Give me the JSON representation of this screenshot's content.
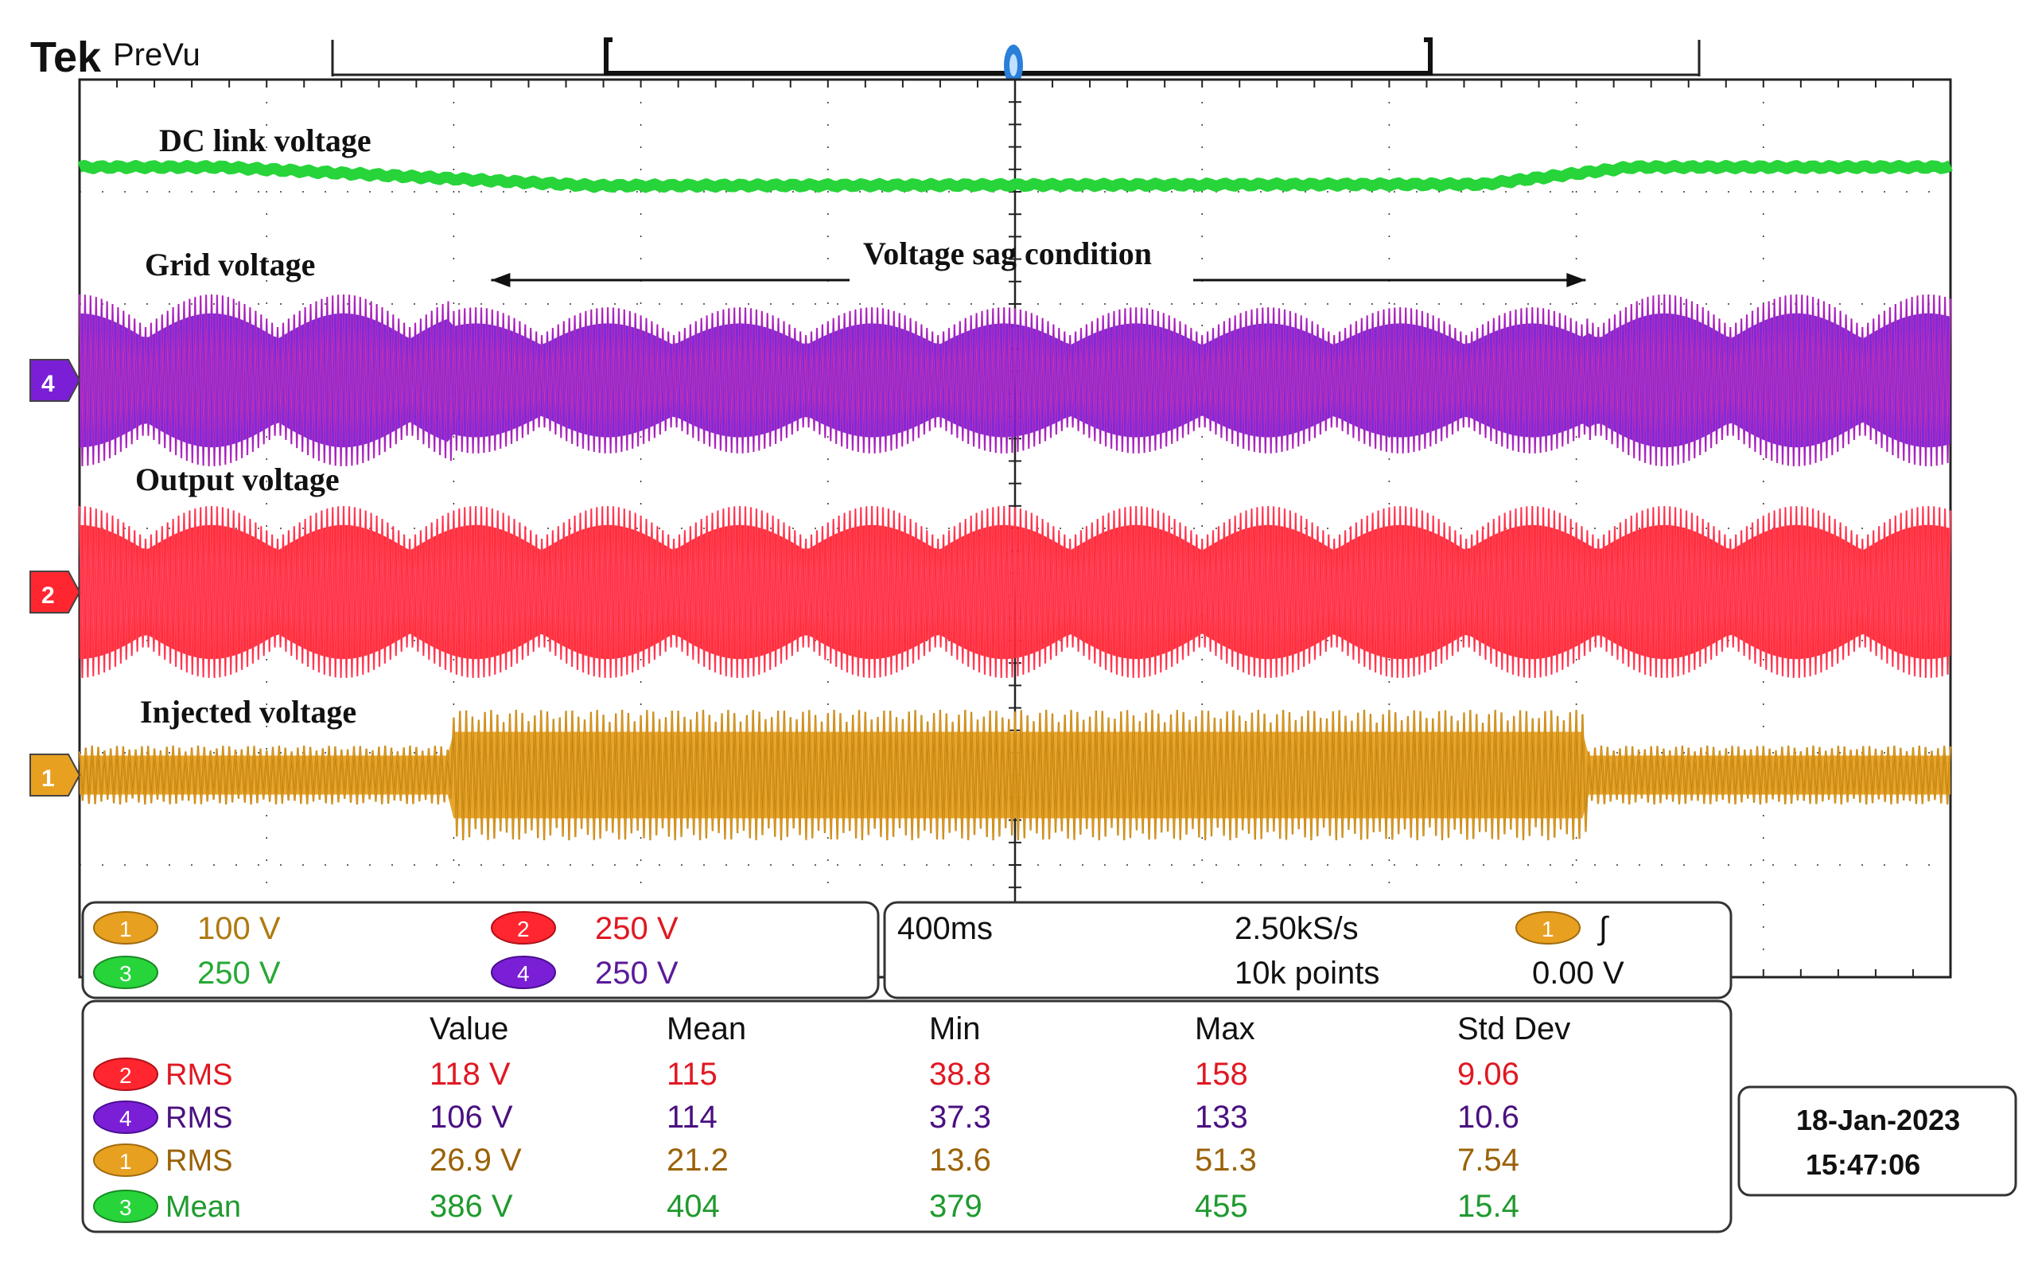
{
  "header": {
    "brand": "Tek",
    "mode": "PreVu"
  },
  "colors": {
    "ch1": "#e8a020",
    "ch1_dark": "#b07a10",
    "ch2": "#ff2630",
    "ch3": "#27d43a",
    "ch4": "#7a1fd6",
    "ch4_pink": "#e23ba8",
    "grid": "#222222",
    "panel_border": "#333333",
    "trigger": "#2a7fd8"
  },
  "chart_data": {
    "type": "line",
    "title": "Voltage sag condition",
    "xlabel": "",
    "ylabel": "",
    "time_per_div_ms": 400,
    "x_range_ms": [
      0,
      4000
    ],
    "grid": true,
    "annotation": {
      "text": "Voltage sag condition",
      "arrow_start_ms": 880,
      "arrow_end_ms": 3220
    },
    "sag_start_ms": 800,
    "sag_end_ms": 3220,
    "series": [
      {
        "name": "DC link voltage",
        "channel": "3",
        "color": "#27d43a",
        "shape": "level",
        "level_points_ms": [
          0,
          300,
          1100,
          3000,
          3320,
          4000
        ],
        "level_values": [
          1.0,
          1.0,
          0.35,
          0.4,
          1.0,
          1.0
        ]
      },
      {
        "name": "Grid voltage",
        "channel": "4",
        "color": "#7a1fd6",
        "shape": "ac",
        "amplitude_normal": 1.0,
        "amplitude_sag": 0.85,
        "cycles": 340,
        "beat_cycles": 24
      },
      {
        "name": "Output voltage",
        "channel": "2",
        "color": "#ff2630",
        "shape": "ac",
        "amplitude_normal": 1.0,
        "amplitude_sag": 1.0,
        "cycles": 340,
        "beat_cycles": 24
      },
      {
        "name": "Injected voltage",
        "channel": "1",
        "color": "#e8a020",
        "shape": "ac",
        "amplitude_normal": 0.45,
        "amplitude_sag": 1.0,
        "cycles": 300,
        "beat_cycles": 0
      }
    ]
  },
  "channels": {
    "ch1": {
      "num": "1",
      "scale": "100 V"
    },
    "ch2": {
      "num": "2",
      "scale": "250 V"
    },
    "ch3": {
      "num": "3",
      "scale": "250 V"
    },
    "ch4": {
      "num": "4",
      "scale": "250 V"
    }
  },
  "timebase": {
    "time_div": "400ms",
    "sample_rate": "2.50kS/s",
    "record_length": "10k points",
    "trigger_channel": "1",
    "trigger_slope": "∫",
    "trigger_level": "0.00 V"
  },
  "measurements": {
    "headers": [
      "Value",
      "Mean",
      "Min",
      "Max",
      "Std Dev"
    ],
    "rows": [
      {
        "channel": "2",
        "type": "RMS",
        "value": "118 V",
        "mean": "115",
        "min": "38.8",
        "max": "158",
        "std": "9.06"
      },
      {
        "channel": "4",
        "type": "RMS",
        "value": "106 V",
        "mean": "114",
        "min": "37.3",
        "max": "133",
        "std": "10.6"
      },
      {
        "channel": "1",
        "type": "RMS",
        "value": "26.9 V",
        "mean": "21.2",
        "min": "13.6",
        "max": "51.3",
        "std": "7.54"
      },
      {
        "channel": "3",
        "type": "Mean",
        "value": "386 V",
        "mean": "404",
        "min": "379",
        "max": "455",
        "std": "15.4"
      }
    ]
  },
  "datetime": {
    "date": "18-Jan-2023",
    "time": "15:47:06"
  }
}
